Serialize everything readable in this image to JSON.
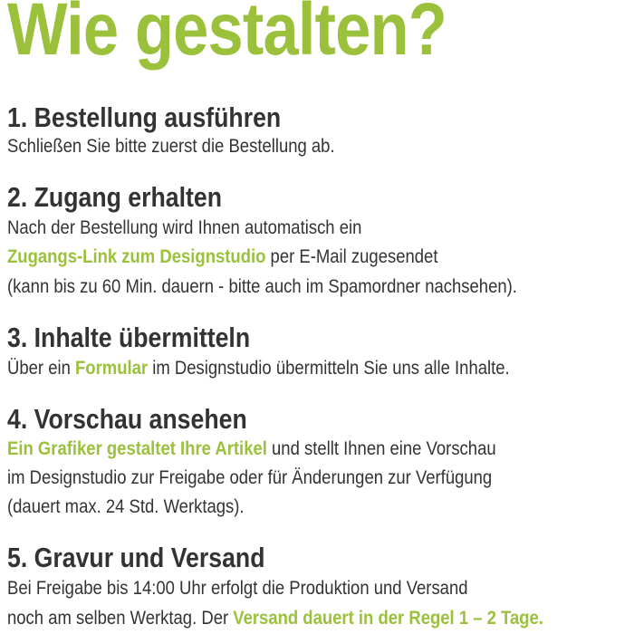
{
  "title": "Wie gestalten?",
  "colors": {
    "accent": "#9bc13c",
    "text": "#333333"
  },
  "steps": [
    {
      "heading": "1. Bestellung ausführen",
      "lines": [
        [
          {
            "t": "Schließen Sie bitte zuerst die Bestellung ab."
          }
        ]
      ]
    },
    {
      "heading": "2. Zugang erhalten",
      "lines": [
        [
          {
            "t": "Nach der Bestellung wird Ihnen automatisch ein"
          }
        ],
        [
          {
            "t": "Zugangs-Link zum Designstudio",
            "hl": true
          },
          {
            "t": " per E-Mail zugesendet"
          }
        ],
        [
          {
            "t": "(kann bis zu 60 Min. dauern - bitte auch im Spamordner nachsehen)."
          }
        ]
      ]
    },
    {
      "heading": "3. Inhalte übermitteln",
      "lines": [
        [
          {
            "t": "Über ein "
          },
          {
            "t": "Formular",
            "hl": true
          },
          {
            "t": " im Designstudio übermitteln Sie uns alle Inhalte."
          }
        ]
      ]
    },
    {
      "heading": "4. Vorschau ansehen",
      "lines": [
        [
          {
            "t": "Ein Grafiker gestaltet Ihre Artikel",
            "hl": true
          },
          {
            "t": " und stellt Ihnen eine Vorschau"
          }
        ],
        [
          {
            "t": "im Designstudio zur Freigabe oder für Änderungen zur Verfügung"
          }
        ],
        [
          {
            "t": "(dauert max. 24 Std. Werktags)."
          }
        ]
      ]
    },
    {
      "heading": "5. Gravur und Versand",
      "lines": [
        [
          {
            "t": "Bei Freigabe bis 14:00 Uhr erfolgt die Produktion und Versand"
          }
        ],
        [
          {
            "t": "noch am selben Werktag. Der "
          },
          {
            "t": "Versand dauert in der Regel 1 – 2 Tage.",
            "hl": true
          }
        ]
      ]
    }
  ]
}
